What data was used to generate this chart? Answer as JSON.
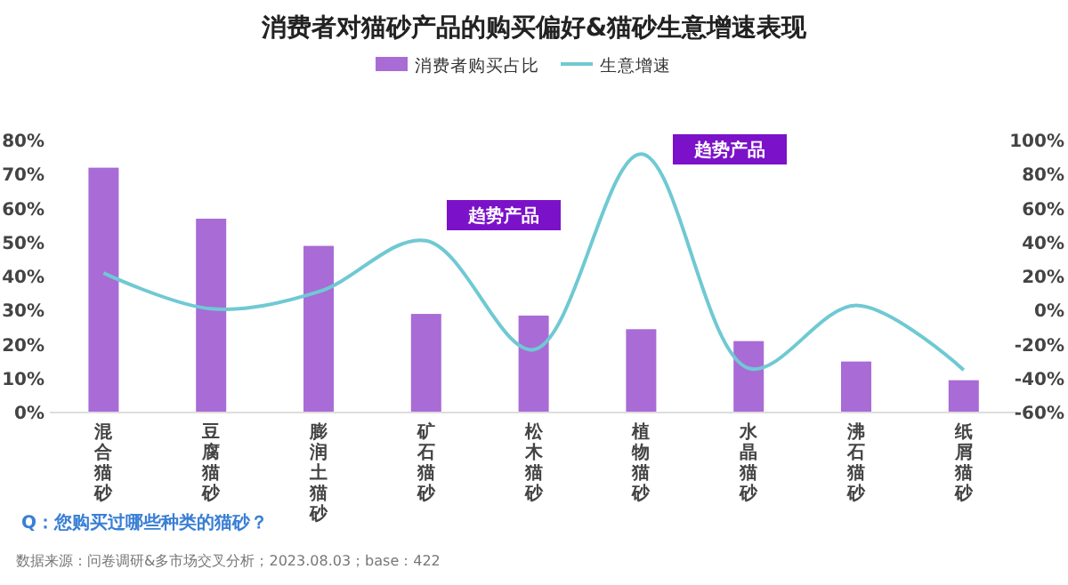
{
  "chart_data": {
    "type": "bar",
    "title": "消费者对猫砂产品的购买偏好&猫砂生意增速表现",
    "categories": [
      "混合猫砂",
      "豆腐猫砂",
      "膨润土猫砂",
      "矿石猫砂",
      "松木猫砂",
      "植物猫砂",
      "水晶猫砂",
      "沸石猫砂",
      "纸屑猫砂"
    ],
    "series": [
      {
        "name": "消费者购买占比",
        "color": "#a96bd6",
        "values": [
          72,
          57,
          49,
          29,
          28.5,
          24.5,
          21,
          15,
          9.5
        ]
      },
      {
        "name": "生意增速",
        "type": "line",
        "axis": "y2",
        "color": "#6fc9d3",
        "values": [
          22,
          1,
          11,
          41,
          -23,
          92,
          -34,
          3,
          -35
        ]
      }
    ],
    "ylim": [
      0,
      80
    ],
    "yticks": [
      {
        "value": 0,
        "label": "0%"
      },
      {
        "value": 10,
        "label": "10%"
      },
      {
        "value": 20,
        "label": "20%"
      },
      {
        "value": 30,
        "label": "30%"
      },
      {
        "value": 40,
        "label": "40%"
      },
      {
        "value": 50,
        "label": "50%"
      },
      {
        "value": 60,
        "label": "60%"
      },
      {
        "value": 70,
        "label": "70%"
      },
      {
        "value": 80,
        "label": "80%"
      }
    ],
    "y2lim": [
      -60,
      100
    ],
    "y2ticks": [
      {
        "value": -60,
        "label": "-60%"
      },
      {
        "value": -40,
        "label": "-40%"
      },
      {
        "value": -20,
        "label": "-20%"
      },
      {
        "value": 0,
        "label": "0%"
      },
      {
        "value": 20,
        "label": "20%"
      },
      {
        "value": 40,
        "label": "40%"
      },
      {
        "value": 60,
        "label": "60%"
      },
      {
        "value": 80,
        "label": "80%"
      },
      {
        "value": 100,
        "label": "100%"
      }
    ],
    "legend": "top",
    "annotations": [
      "趋势产品",
      "趋势产品",
      "Q：您购买过哪些种类的猫砂？",
      "数据来源：问卷调研&多市场交叉分析；2023.08.03；base：422"
    ]
  }
}
